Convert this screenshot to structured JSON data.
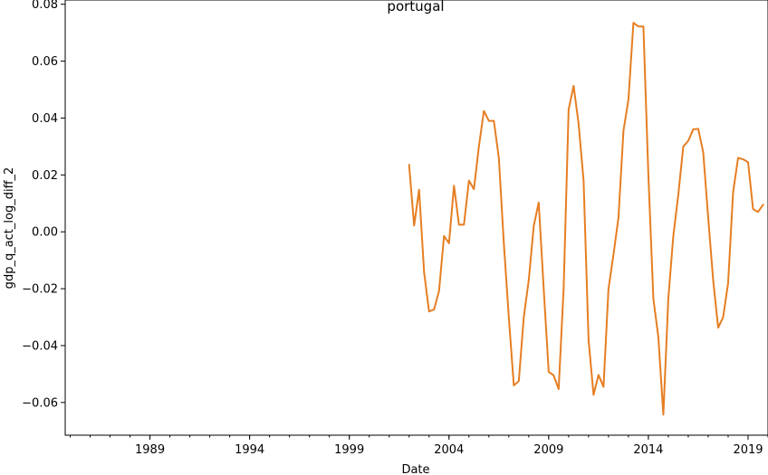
{
  "chart_data": {
    "type": "line",
    "title": "portugal",
    "xlabel": "Date",
    "ylabel": "gdp_q_act_log_diff_2",
    "xlim": [
      "1984-10-01",
      "2020-01-01"
    ],
    "ylim": [
      -0.0715,
      0.0815
    ],
    "x_ticks": [
      "1989",
      "1994",
      "1999",
      "2004",
      "2009",
      "2014",
      "2019"
    ],
    "y_ticks": [
      "−0.06",
      "−0.04",
      "−0.02",
      "0.00",
      "0.02",
      "0.04",
      "0.06",
      "0.08"
    ],
    "grid": false,
    "series": [
      {
        "color": "#e67e22",
        "points": [
          [
            "2002-01-01",
            0.0235
          ],
          [
            "2002-04-01",
            0.0022
          ],
          [
            "2002-07-01",
            0.0148
          ],
          [
            "2002-10-01",
            -0.0142
          ],
          [
            "2003-01-01",
            -0.028
          ],
          [
            "2003-04-01",
            -0.0273
          ],
          [
            "2003-07-01",
            -0.0208
          ],
          [
            "2003-10-01",
            -0.0015
          ],
          [
            "2004-01-01",
            -0.004
          ],
          [
            "2004-04-01",
            0.0162
          ],
          [
            "2004-07-01",
            0.0025
          ],
          [
            "2004-10-01",
            0.0025
          ],
          [
            "2005-01-01",
            0.018
          ],
          [
            "2005-04-01",
            0.015
          ],
          [
            "2005-07-01",
            0.03
          ],
          [
            "2005-10-01",
            0.0425
          ],
          [
            "2006-01-01",
            0.039
          ],
          [
            "2006-04-01",
            0.039
          ],
          [
            "2006-07-01",
            0.026
          ],
          [
            "2006-10-01",
            -0.004
          ],
          [
            "2007-01-01",
            -0.03
          ],
          [
            "2007-04-01",
            -0.054
          ],
          [
            "2007-07-01",
            -0.0525
          ],
          [
            "2007-10-01",
            -0.03
          ],
          [
            "2008-01-01",
            -0.017
          ],
          [
            "2008-04-01",
            0.002
          ],
          [
            "2008-07-01",
            0.0103
          ],
          [
            "2008-10-01",
            -0.02
          ],
          [
            "2009-01-01",
            -0.0492
          ],
          [
            "2009-04-01",
            -0.0505
          ],
          [
            "2009-07-01",
            -0.0553
          ],
          [
            "2009-10-01",
            -0.02
          ],
          [
            "2010-01-01",
            0.043
          ],
          [
            "2010-04-01",
            0.0513
          ],
          [
            "2010-07-01",
            0.038
          ],
          [
            "2010-10-01",
            0.018
          ],
          [
            "2011-01-01",
            -0.038
          ],
          [
            "2011-04-01",
            -0.0573
          ],
          [
            "2011-07-01",
            -0.0503
          ],
          [
            "2011-10-01",
            -0.0545
          ],
          [
            "2012-01-01",
            -0.02
          ],
          [
            "2012-04-01",
            -0.008
          ],
          [
            "2012-07-01",
            0.005
          ],
          [
            "2012-10-01",
            0.0355
          ],
          [
            "2013-01-01",
            0.0465
          ],
          [
            "2013-04-01",
            0.0735
          ],
          [
            "2013-07-01",
            0.0722
          ],
          [
            "2013-10-01",
            0.0722
          ],
          [
            "2014-01-01",
            0.02
          ],
          [
            "2014-04-01",
            -0.0235
          ],
          [
            "2014-07-01",
            -0.037
          ],
          [
            "2014-10-01",
            -0.0643
          ],
          [
            "2015-01-01",
            -0.0235
          ],
          [
            "2015-04-01",
            -0.0015
          ],
          [
            "2015-07-01",
            0.013
          ],
          [
            "2015-10-01",
            0.03
          ],
          [
            "2016-01-01",
            0.032
          ],
          [
            "2016-04-01",
            0.036
          ],
          [
            "2016-07-01",
            0.0362
          ],
          [
            "2016-10-01",
            0.028
          ],
          [
            "2017-01-01",
            0.005
          ],
          [
            "2017-04-01",
            -0.017
          ],
          [
            "2017-07-01",
            -0.0337
          ],
          [
            "2017-10-01",
            -0.03
          ],
          [
            "2018-01-01",
            -0.018
          ],
          [
            "2018-04-01",
            0.014
          ],
          [
            "2018-07-01",
            0.026
          ],
          [
            "2018-10-01",
            0.0255
          ],
          [
            "2019-01-01",
            0.0245
          ],
          [
            "2019-04-01",
            0.008
          ],
          [
            "2019-07-01",
            0.007
          ],
          [
            "2019-10-01",
            0.0095
          ]
        ]
      }
    ]
  }
}
